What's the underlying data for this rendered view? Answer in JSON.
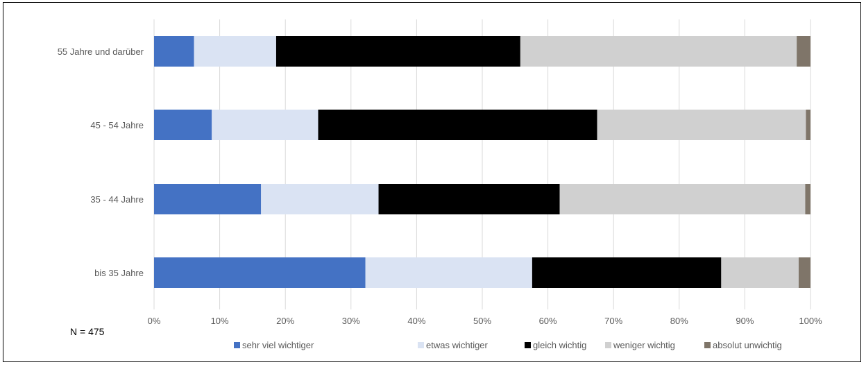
{
  "note": "N = 475",
  "chart_data": {
    "type": "bar",
    "orientation": "horizontal",
    "stacked": true,
    "percent_stacked": true,
    "categories": [
      "55 Jahre und darüber",
      "45 - 54 Jahre ",
      "35 - 44 Jahre",
      "bis 35 Jahre"
    ],
    "xlim": [
      0,
      100
    ],
    "x_ticks": [
      "0%",
      "10%",
      "20%",
      "30%",
      "40%",
      "50%",
      "60%",
      "70%",
      "80%",
      "90%",
      "100%"
    ],
    "grid": true,
    "legend_position": "bottom",
    "series": [
      {
        "name": "sehr viel wichtiger",
        "color": "#4472C4",
        "values": [
          6.1,
          8.8,
          16.3,
          32.2
        ]
      },
      {
        "name": "etwas wichtiger",
        "color": "#DAE3F3",
        "values": [
          12.5,
          16.2,
          17.9,
          25.4
        ]
      },
      {
        "name": "gleich wichtig",
        "color": "#000000",
        "values": [
          37.2,
          42.5,
          27.6,
          28.8
        ]
      },
      {
        "name": "weniger wichtig",
        "color": "#D0D0D0",
        "values": [
          42.1,
          31.8,
          37.4,
          11.8
        ]
      },
      {
        "name": "absolut unwichtig",
        "color": "#7F7569",
        "values": [
          2.1,
          0.7,
          0.8,
          1.8
        ]
      }
    ]
  }
}
